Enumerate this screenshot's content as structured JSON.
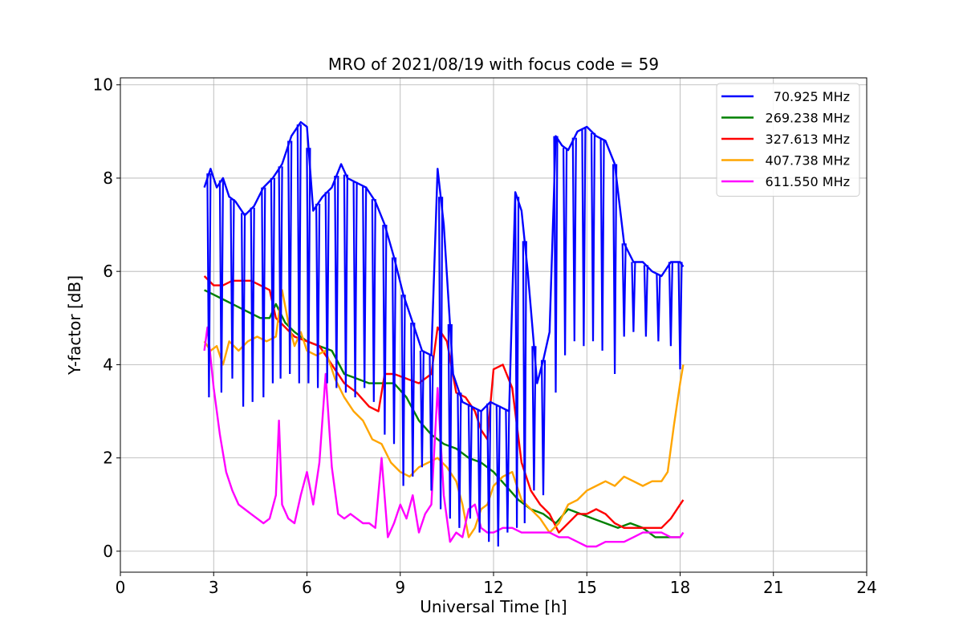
{
  "chart_data": {
    "type": "line",
    "title": "MRO of 2021/08/19 with focus code = 59",
    "xlabel": "Universal Time [h]",
    "ylabel": "Y-factor [dB]",
    "xlim": [
      0,
      24
    ],
    "ylim": [
      -0.45,
      10.15
    ],
    "xticks": [
      0,
      3,
      6,
      9,
      12,
      15,
      18,
      21,
      24
    ],
    "yticks": [
      0,
      2,
      4,
      6,
      8,
      10
    ],
    "grid": true,
    "legend_position": "top-right",
    "series": [
      {
        "name": "70.925 MHz",
        "color": "#0000ff",
        "x": [
          2.7,
          2.9,
          3.1,
          3.3,
          3.5,
          3.7,
          4.0,
          4.3,
          4.6,
          4.9,
          5.2,
          5.5,
          5.8,
          6.0,
          6.2,
          6.5,
          6.8,
          7.1,
          7.3,
          7.6,
          7.9,
          8.2,
          8.5,
          8.8,
          9.1,
          9.4,
          9.7,
          10.0,
          10.2,
          10.4,
          10.7,
          11.0,
          11.3,
          11.6,
          11.9,
          12.2,
          12.5,
          12.7,
          12.9,
          13.1,
          13.4,
          13.6,
          13.8,
          14.0,
          14.2,
          14.4,
          14.7,
          15.0,
          15.3,
          15.6,
          15.9,
          16.2,
          16.5,
          16.8,
          17.1,
          17.4,
          17.7,
          18.0,
          18.1
        ],
        "y": [
          7.8,
          8.2,
          7.8,
          8.0,
          7.6,
          7.5,
          7.2,
          7.4,
          7.8,
          8.0,
          8.3,
          8.9,
          9.2,
          9.1,
          7.3,
          7.6,
          7.8,
          8.3,
          8.0,
          7.9,
          7.8,
          7.5,
          7.0,
          6.3,
          5.5,
          4.9,
          4.3,
          4.2,
          8.2,
          7.0,
          3.8,
          3.2,
          3.1,
          3.0,
          3.2,
          3.1,
          3.0,
          7.7,
          7.3,
          6.0,
          3.6,
          4.1,
          4.7,
          8.9,
          8.7,
          8.6,
          9.0,
          9.1,
          8.9,
          8.8,
          8.3,
          6.6,
          6.2,
          6.2,
          6.0,
          5.9,
          6.2,
          6.2,
          6.1
        ],
        "dips": [
          [
            2.85,
            3.3
          ],
          [
            3.25,
            3.4
          ],
          [
            3.6,
            3.7
          ],
          [
            3.95,
            3.1
          ],
          [
            4.25,
            3.2
          ],
          [
            4.6,
            3.3
          ],
          [
            4.9,
            3.6
          ],
          [
            5.15,
            3.7
          ],
          [
            5.45,
            3.8
          ],
          [
            5.75,
            3.6
          ],
          [
            6.05,
            3.6
          ],
          [
            6.35,
            3.5
          ],
          [
            6.65,
            3.6
          ],
          [
            6.95,
            3.5
          ],
          [
            7.25,
            3.4
          ],
          [
            7.55,
            3.3
          ],
          [
            7.85,
            3.5
          ],
          [
            8.15,
            3.2
          ],
          [
            8.5,
            2.5
          ],
          [
            8.8,
            2.3
          ],
          [
            9.1,
            1.4
          ],
          [
            9.4,
            1.6
          ],
          [
            9.7,
            1.8
          ],
          [
            10.0,
            1.3
          ],
          [
            10.3,
            0.9
          ],
          [
            10.6,
            0.7
          ],
          [
            10.9,
            0.5
          ],
          [
            11.25,
            0.7
          ],
          [
            11.55,
            0.4
          ],
          [
            11.85,
            0.2
          ],
          [
            12.15,
            0.1
          ],
          [
            12.45,
            0.4
          ],
          [
            12.75,
            0.5
          ],
          [
            13.0,
            0.6
          ],
          [
            13.3,
            1.3
          ],
          [
            13.6,
            1.2
          ],
          [
            14.0,
            3.4
          ],
          [
            14.3,
            4.2
          ],
          [
            14.6,
            4.5
          ],
          [
            14.9,
            4.4
          ],
          [
            15.2,
            4.5
          ],
          [
            15.5,
            4.3
          ],
          [
            15.9,
            3.8
          ],
          [
            16.2,
            4.6
          ],
          [
            16.5,
            4.7
          ],
          [
            16.9,
            4.6
          ],
          [
            17.3,
            4.5
          ],
          [
            17.7,
            4.4
          ],
          [
            18.0,
            3.9
          ]
        ]
      },
      {
        "name": "269.238 MHz",
        "color": "#008000",
        "x": [
          2.7,
          3.0,
          3.3,
          3.6,
          3.9,
          4.2,
          4.5,
          4.8,
          5.0,
          5.3,
          5.6,
          6.0,
          6.4,
          6.8,
          7.2,
          7.6,
          8.0,
          8.4,
          8.8,
          9.2,
          9.6,
          10.0,
          10.4,
          10.8,
          11.2,
          11.6,
          12.0,
          12.4,
          12.8,
          13.2,
          13.6,
          14.0,
          14.4,
          14.8,
          15.2,
          15.6,
          16.0,
          16.4,
          16.8,
          17.2,
          17.6,
          18.0
        ],
        "y": [
          5.6,
          5.5,
          5.4,
          5.3,
          5.2,
          5.1,
          5.0,
          5.0,
          5.3,
          4.9,
          4.7,
          4.5,
          4.4,
          4.3,
          3.8,
          3.7,
          3.6,
          3.6,
          3.6,
          3.3,
          2.8,
          2.5,
          2.3,
          2.2,
          2.0,
          1.9,
          1.7,
          1.4,
          1.1,
          0.9,
          0.8,
          0.6,
          0.9,
          0.8,
          0.7,
          0.6,
          0.5,
          0.6,
          0.5,
          0.3,
          0.3,
          0.3
        ]
      },
      {
        "name": "327.613 MHz",
        "color": "#ff0000",
        "x": [
          2.7,
          3.0,
          3.3,
          3.6,
          3.9,
          4.2,
          4.5,
          4.8,
          5.0,
          5.3,
          5.6,
          6.0,
          6.4,
          6.8,
          7.2,
          7.6,
          8.0,
          8.3,
          8.5,
          8.8,
          9.2,
          9.6,
          10.0,
          10.2,
          10.5,
          10.8,
          11.1,
          11.4,
          11.6,
          11.8,
          12.0,
          12.3,
          12.6,
          12.9,
          13.2,
          13.5,
          13.8,
          14.1,
          14.4,
          14.7,
          15.0,
          15.3,
          15.6,
          15.9,
          16.2,
          16.5,
          16.8,
          17.1,
          17.4,
          17.7,
          18.0,
          18.1
        ],
        "y": [
          5.9,
          5.7,
          5.7,
          5.8,
          5.8,
          5.8,
          5.7,
          5.6,
          5.0,
          4.8,
          4.6,
          4.5,
          4.4,
          4.0,
          3.6,
          3.4,
          3.1,
          3.0,
          3.8,
          3.8,
          3.7,
          3.6,
          3.8,
          4.8,
          4.5,
          3.4,
          3.3,
          3.0,
          2.6,
          2.4,
          3.9,
          4.0,
          3.5,
          1.9,
          1.3,
          1.0,
          0.8,
          0.4,
          0.6,
          0.8,
          0.8,
          0.9,
          0.8,
          0.6,
          0.5,
          0.5,
          0.5,
          0.5,
          0.5,
          0.7,
          1.0,
          1.1
        ]
      },
      {
        "name": "407.738 MHz",
        "color": "#ffa500",
        "x": [
          2.7,
          2.9,
          3.1,
          3.3,
          3.5,
          3.8,
          4.1,
          4.4,
          4.7,
          5.0,
          5.2,
          5.4,
          5.6,
          5.8,
          6.0,
          6.3,
          6.6,
          6.9,
          7.2,
          7.5,
          7.8,
          8.1,
          8.4,
          8.7,
          9.0,
          9.3,
          9.6,
          9.9,
          10.2,
          10.5,
          10.8,
          11.0,
          11.2,
          11.4,
          11.6,
          11.8,
          12.0,
          12.3,
          12.6,
          12.9,
          13.2,
          13.5,
          13.8,
          14.1,
          14.4,
          14.7,
          15.0,
          15.3,
          15.6,
          15.9,
          16.2,
          16.5,
          16.8,
          17.1,
          17.4,
          17.6,
          17.8,
          18.0,
          18.1
        ],
        "y": [
          4.5,
          4.3,
          4.4,
          4.0,
          4.5,
          4.3,
          4.5,
          4.6,
          4.5,
          4.6,
          5.6,
          4.9,
          4.4,
          4.7,
          4.3,
          4.2,
          4.3,
          3.7,
          3.3,
          3.0,
          2.8,
          2.4,
          2.3,
          1.9,
          1.7,
          1.6,
          1.8,
          1.9,
          2.0,
          1.8,
          1.5,
          1.0,
          0.3,
          0.5,
          0.9,
          1.0,
          1.4,
          1.6,
          1.7,
          1.1,
          0.9,
          0.7,
          0.4,
          0.6,
          1.0,
          1.1,
          1.3,
          1.4,
          1.5,
          1.4,
          1.6,
          1.5,
          1.4,
          1.5,
          1.5,
          1.7,
          2.7,
          3.6,
          4.0
        ]
      },
      {
        "name": "611.550 MHz",
        "color": "#ff00ff",
        "x": [
          2.7,
          2.8,
          3.0,
          3.2,
          3.4,
          3.6,
          3.8,
          4.0,
          4.2,
          4.4,
          4.6,
          4.8,
          5.0,
          5.1,
          5.2,
          5.4,
          5.6,
          5.8,
          6.0,
          6.2,
          6.4,
          6.6,
          6.8,
          7.0,
          7.2,
          7.4,
          7.6,
          7.8,
          8.0,
          8.2,
          8.4,
          8.6,
          8.8,
          9.0,
          9.2,
          9.4,
          9.6,
          9.8,
          10.0,
          10.2,
          10.4,
          10.6,
          10.8,
          11.0,
          11.2,
          11.4,
          11.6,
          11.8,
          12.0,
          12.3,
          12.6,
          12.9,
          13.2,
          13.5,
          13.8,
          14.1,
          14.4,
          14.7,
          15.0,
          15.3,
          15.6,
          15.9,
          16.2,
          16.5,
          16.8,
          17.1,
          17.4,
          17.7,
          18.0,
          18.1
        ],
        "y": [
          4.3,
          4.8,
          3.5,
          2.5,
          1.7,
          1.3,
          1.0,
          0.9,
          0.8,
          0.7,
          0.6,
          0.7,
          1.2,
          2.8,
          1.0,
          0.7,
          0.6,
          1.2,
          1.7,
          1.0,
          1.9,
          3.8,
          1.8,
          0.8,
          0.7,
          0.8,
          0.7,
          0.6,
          0.6,
          0.5,
          2.0,
          0.3,
          0.6,
          1.0,
          0.7,
          1.2,
          0.4,
          0.8,
          1.0,
          3.5,
          1.2,
          0.2,
          0.4,
          0.3,
          0.9,
          1.0,
          0.5,
          0.4,
          0.4,
          0.5,
          0.5,
          0.4,
          0.4,
          0.4,
          0.4,
          0.3,
          0.3,
          0.2,
          0.1,
          0.1,
          0.2,
          0.2,
          0.2,
          0.3,
          0.4,
          0.4,
          0.4,
          0.3,
          0.3,
          0.4
        ]
      }
    ]
  }
}
